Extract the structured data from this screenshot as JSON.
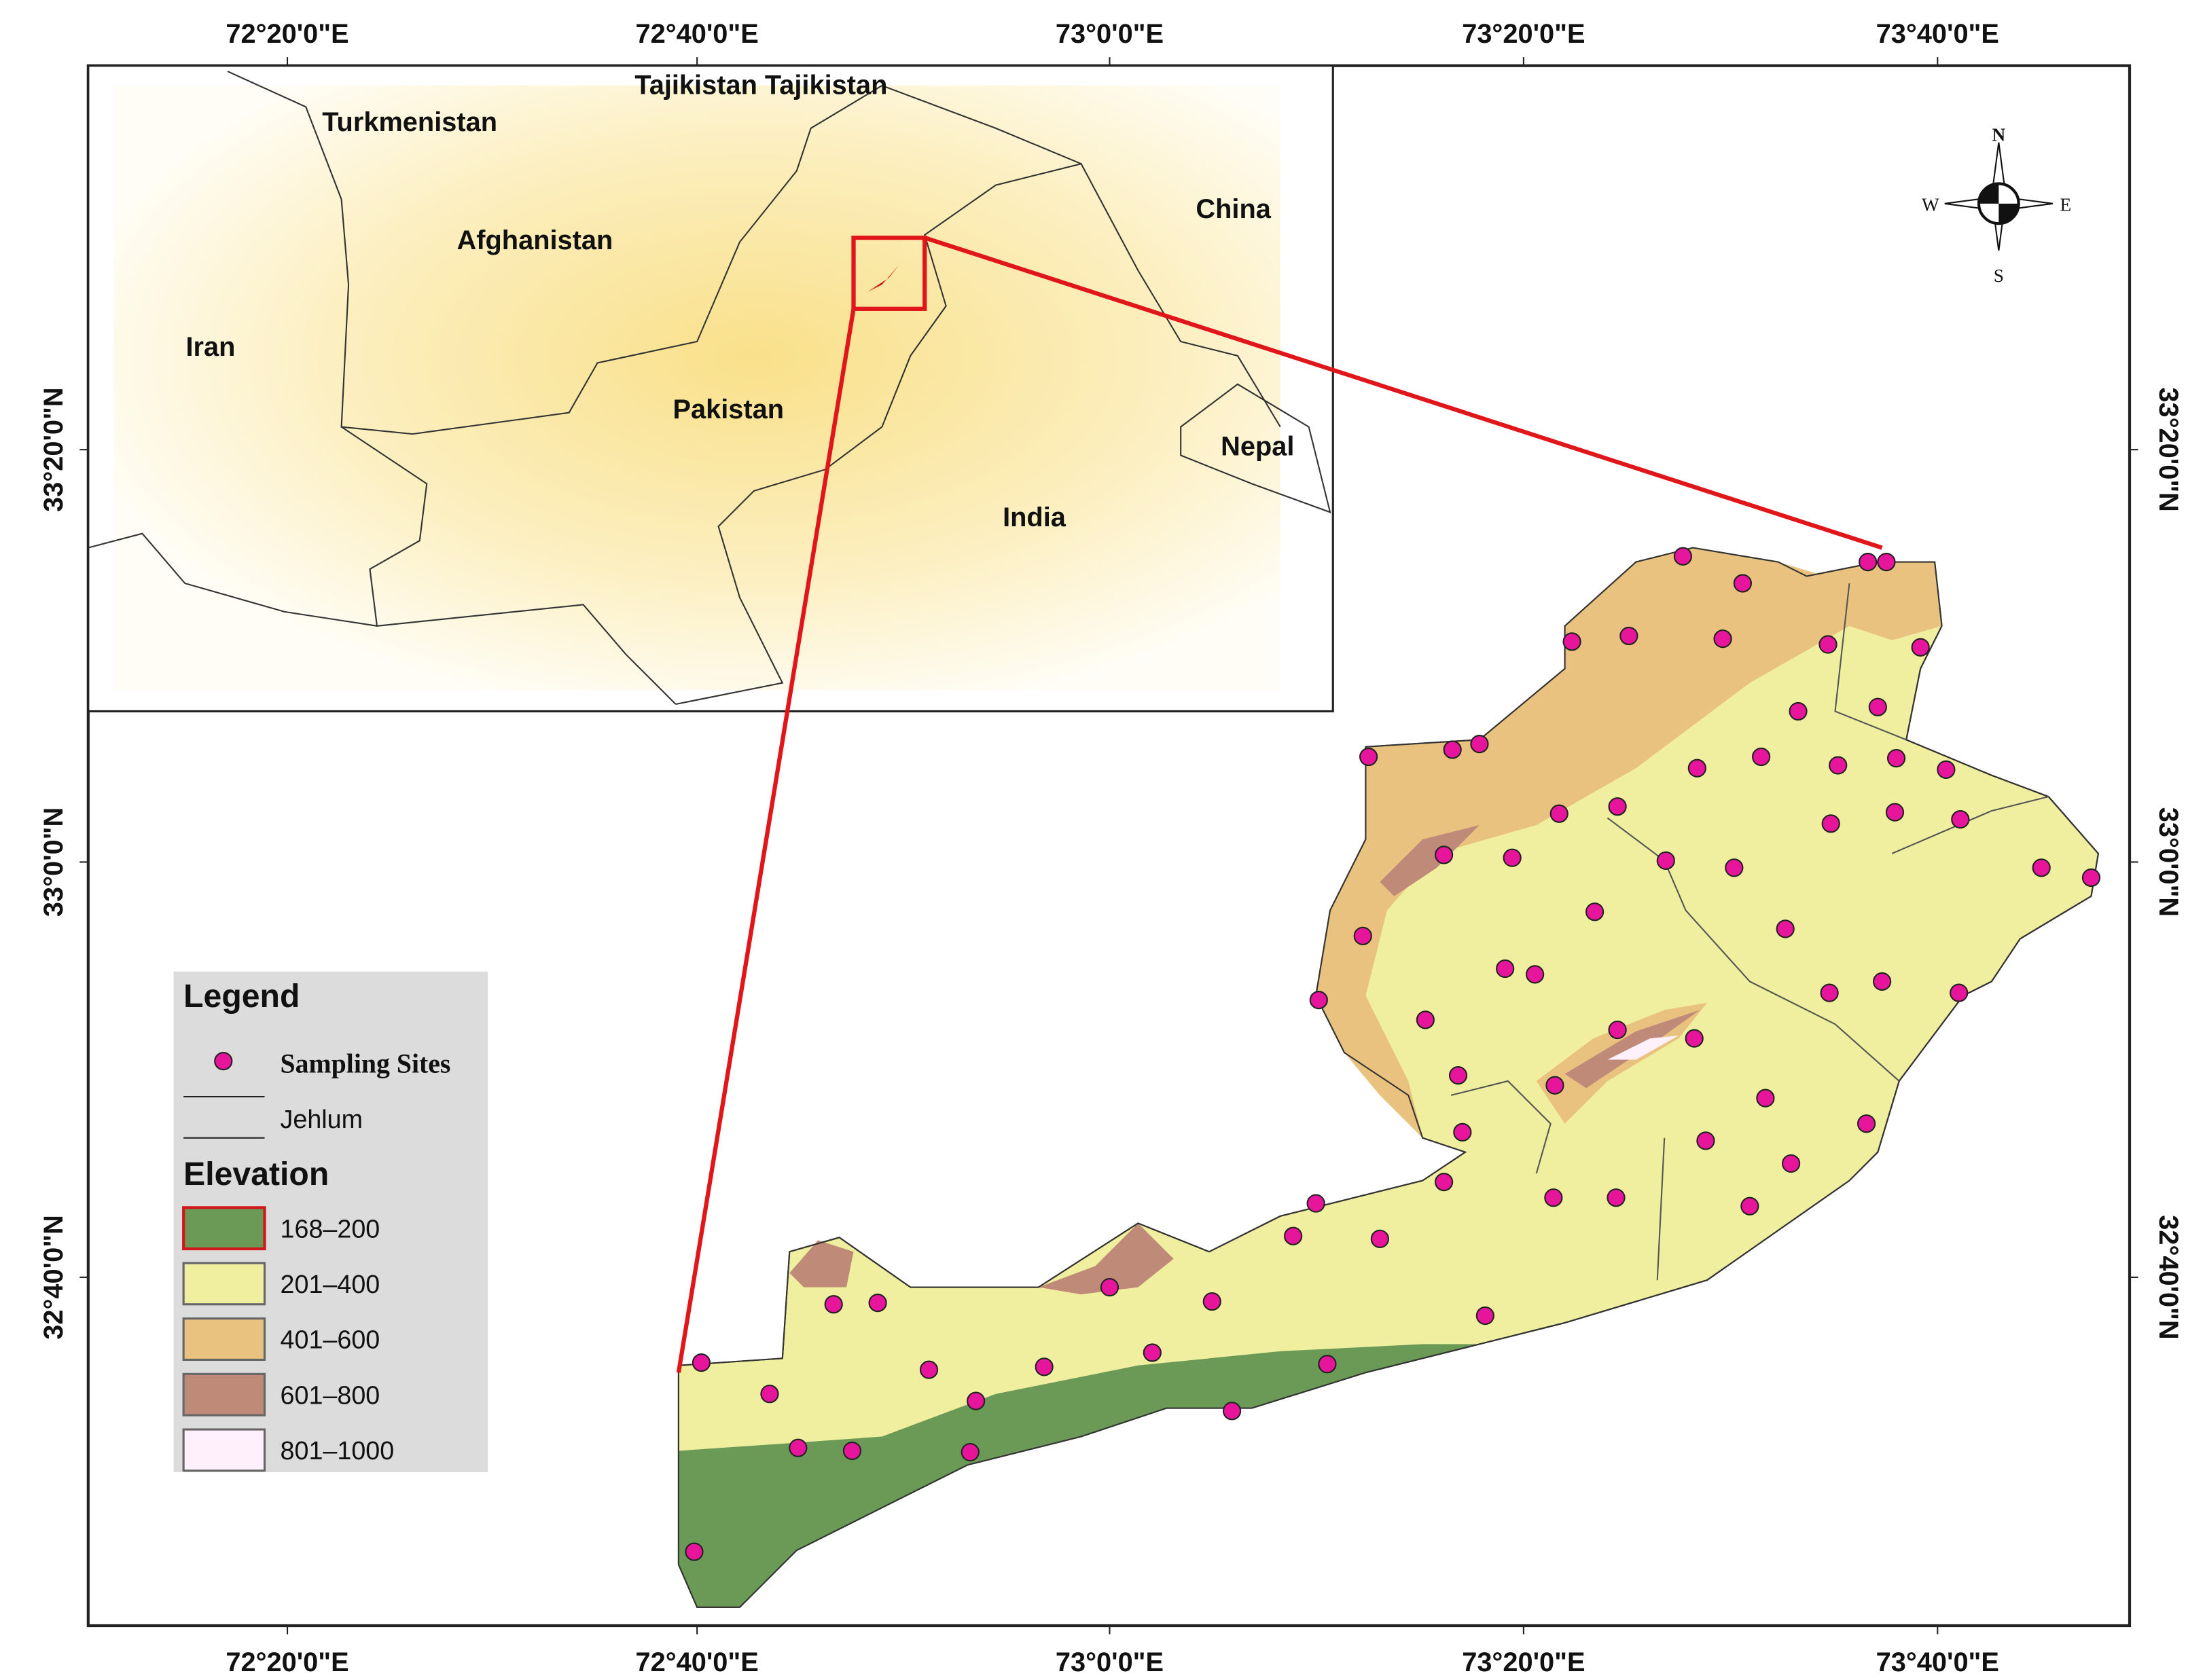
{
  "map": {
    "lon_ticks": [
      "72°20'0\"E",
      "72°40'0\"E",
      "73°0'0\"E",
      "73°20'0\"E",
      "73°40'0\"E"
    ],
    "lat_ticks": [
      "33°20'0\"N",
      "33°0'0\"N",
      "32°40'0\"N"
    ],
    "inset": {
      "labels": [
        "Tajikistan Tajikistan",
        "Turkmenistan",
        "Afghanistan",
        "China",
        "Iran",
        "Pakistan",
        "Nepal",
        "India"
      ]
    },
    "compass": [
      "N",
      "E",
      "S",
      "W"
    ],
    "legend": {
      "title": "Legend",
      "sites": {
        "label": "Sampling Sites",
        "color": "#e6159b"
      },
      "river": "Jehlum",
      "elevation_title": "Elevation",
      "classes": [
        {
          "label": "168–200",
          "color": "#6b9a57"
        },
        {
          "label": "201–400",
          "color": "#f0ef9f"
        },
        {
          "label": "401–600",
          "color": "#e9c27f"
        },
        {
          "label": "601–800",
          "color": "#c08a78"
        },
        {
          "label": "801–1000",
          "color": "#fff0fb"
        }
      ]
    }
  }
}
